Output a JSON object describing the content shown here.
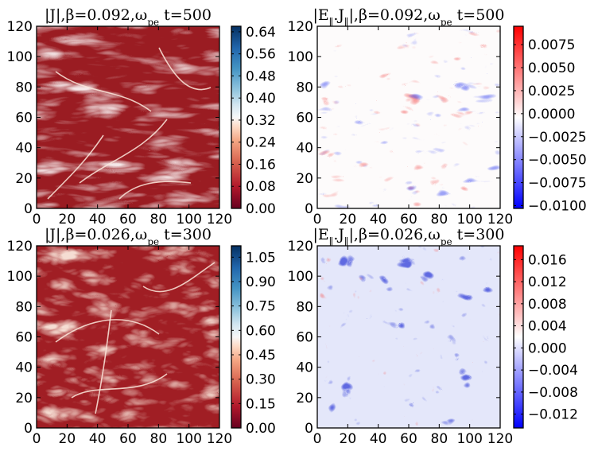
{
  "chart_data": [
    {
      "type": "heatmap",
      "title": "|J|,β=0.092,ω_pe t=500",
      "xlabel": "",
      "ylabel": "",
      "xlim": [
        0,
        120
      ],
      "ylim": [
        0,
        120
      ],
      "x_ticks": [
        "0",
        "20",
        "40",
        "60",
        "80",
        "100",
        "120"
      ],
      "y_ticks": [
        "0",
        "20",
        "40",
        "60",
        "80",
        "100",
        "120"
      ],
      "colormap": "RdBu",
      "colorbar_ticks": [
        "0.00",
        "0.08",
        "0.16",
        "0.24",
        "0.32",
        "0.40",
        "0.48",
        "0.56",
        "0.64"
      ],
      "colorbar_range": [
        0.0,
        0.66
      ],
      "dominant_value": 0.06,
      "description": "turbulent filamentary current sheets, mostly dark red with bright white/light filaments"
    },
    {
      "type": "heatmap",
      "title": "|E_∥.J_∥|,β=0.092,ω_pe t=500",
      "xlabel": "",
      "ylabel": "",
      "xlim": [
        0,
        120
      ],
      "ylim": [
        0,
        120
      ],
      "x_ticks": [
        "0",
        "20",
        "40",
        "60",
        "80",
        "100",
        "120"
      ],
      "y_ticks": [
        "0",
        "20",
        "40",
        "60",
        "80",
        "100",
        "120"
      ],
      "colormap": "bwr",
      "colorbar_ticks": [
        "0.0075",
        "0.0050",
        "0.0025",
        "0.0000",
        "−0.0025",
        "−0.0050",
        "−0.0075",
        "−0.0100"
      ],
      "colorbar_range": [
        -0.0103,
        0.0095
      ],
      "dominant_value": 0.0,
      "description": "nearly white field with sparse thin red and blue filaments"
    },
    {
      "type": "heatmap",
      "title": "|J|,β=0.026,ω_pe t=300",
      "xlabel": "",
      "ylabel": "",
      "xlim": [
        0,
        120
      ],
      "ylim": [
        0,
        120
      ],
      "x_ticks": [
        "0",
        "20",
        "40",
        "60",
        "80",
        "100",
        "120"
      ],
      "y_ticks": [
        "0",
        "20",
        "40",
        "60",
        "80",
        "100",
        "120"
      ],
      "colormap": "RdBu",
      "colorbar_ticks": [
        "0.00",
        "0.15",
        "0.30",
        "0.45",
        "0.60",
        "0.75",
        "0.90",
        "1.05"
      ],
      "colorbar_range": [
        0.0,
        1.12
      ],
      "dominant_value": 0.08,
      "description": "turbulent filamentary current sheets, dark red background with bright filaments"
    },
    {
      "type": "heatmap",
      "title": "|E_∥.J_∥|,β=0.026,ω_pe t=300",
      "xlabel": "",
      "ylabel": "",
      "xlim": [
        0,
        120
      ],
      "ylim": [
        0,
        120
      ],
      "x_ticks": [
        "0",
        "20",
        "40",
        "60",
        "80",
        "100",
        "120"
      ],
      "y_ticks": [
        "0",
        "20",
        "40",
        "60",
        "80",
        "100",
        "120"
      ],
      "colormap": "bwr",
      "colorbar_ticks": [
        "0.016",
        "0.012",
        "0.008",
        "0.004",
        "0.000",
        "−0.004",
        "−0.008",
        "−0.012"
      ],
      "colorbar_range": [
        -0.0145,
        0.0185
      ],
      "dominant_value": -0.0015,
      "description": "pale blue field with sparse dark blue and red speckles"
    }
  ],
  "colors": {
    "rdbu_dark_red": "#9c1d22",
    "rdbu_white": "#f7f7f7",
    "rdbu_dark_blue": "#0d4a85",
    "bwr_red": "#ff0000",
    "bwr_white": "#ffffff",
    "bwr_blue": "#0000ff"
  }
}
